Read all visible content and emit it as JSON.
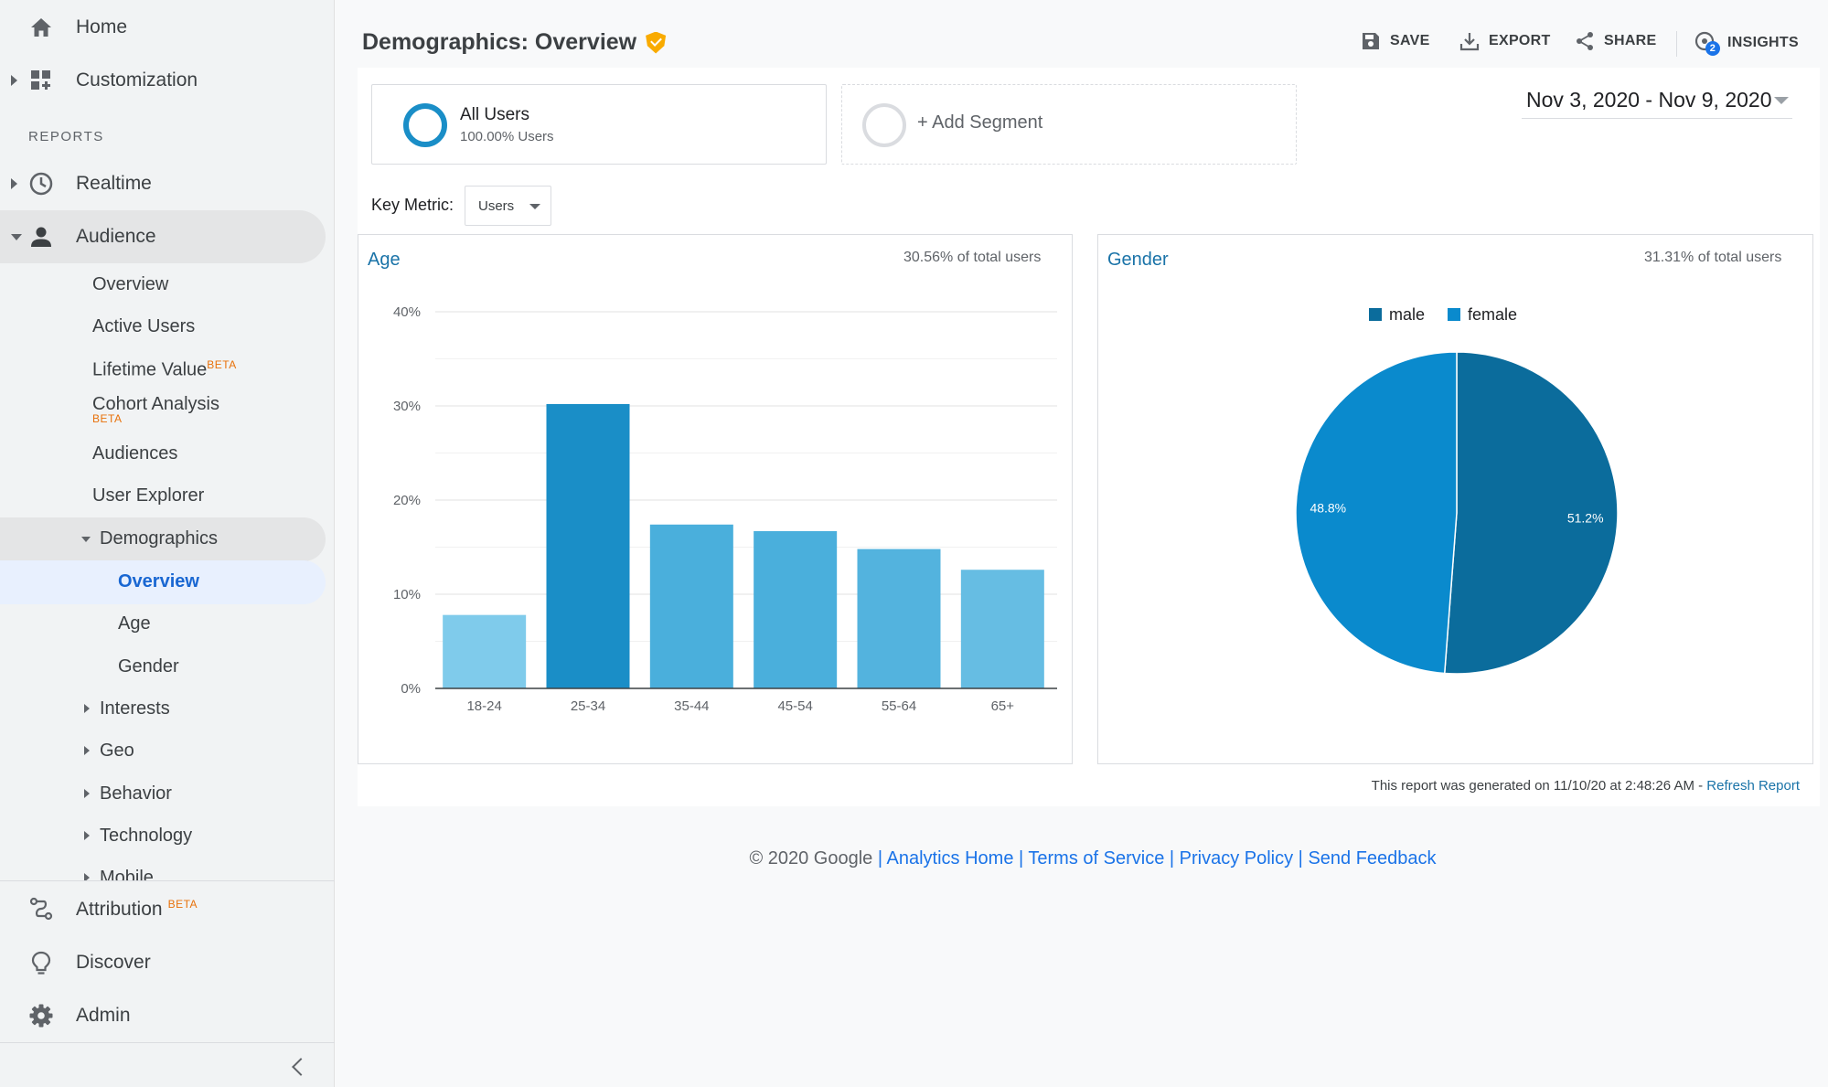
{
  "sidebar": {
    "home": "Home",
    "customization": "Customization",
    "reports_header": "REPORTS",
    "realtime": "Realtime",
    "audience": "Audience",
    "audience_items": {
      "overview": "Overview",
      "active_users": "Active Users",
      "lifetime_value": "Lifetime Value",
      "cohort_analysis": "Cohort Analysis",
      "audiences": "Audiences",
      "user_explorer": "User Explorer",
      "demographics": "Demographics",
      "demo_overview": "Overview",
      "demo_age": "Age",
      "demo_gender": "Gender",
      "interests": "Interests",
      "geo": "Geo",
      "behavior": "Behavior",
      "technology": "Technology",
      "mobile": "Mobile"
    },
    "beta_label": "BETA",
    "attribution": "Attribution",
    "discover": "Discover",
    "admin": "Admin"
  },
  "header": {
    "title": "Demographics: Overview",
    "save": "SAVE",
    "export": "EXPORT",
    "share": "SHARE",
    "insights": "INSIGHTS",
    "insights_badge": "2"
  },
  "segments": {
    "all_users_title": "All Users",
    "all_users_sub": "100.00% Users",
    "add_segment": "+ Add Segment"
  },
  "date_range": "Nov 3, 2020 - Nov 9, 2020",
  "key_metric": {
    "label": "Key Metric:",
    "value": "Users"
  },
  "age_panel": {
    "title": "Age",
    "pct_total": "30.56% of total users"
  },
  "gender_panel": {
    "title": "Gender",
    "pct_total": "31.31% of total users"
  },
  "report_generated": "This report was generated on 11/10/20 at 2:48:26 AM - ",
  "refresh_report": "Refresh Report",
  "footer": {
    "copyright": "© 2020 Google",
    "sep": " | ",
    "analytics_home": "Analytics Home",
    "terms": "Terms of Service",
    "privacy": "Privacy Policy",
    "feedback": "Send Feedback"
  },
  "colors": {
    "accent": "#1a73a8",
    "bar_25_34": "#1a8ec7",
    "pie_male": "#0b6c9c",
    "pie_female": "#0a8acd"
  },
  "chart_data": [
    {
      "type": "bar",
      "title": "Age",
      "categories": [
        "18-24",
        "25-34",
        "35-44",
        "45-54",
        "55-64",
        "65+"
      ],
      "values": [
        7.8,
        30.2,
        17.4,
        16.7,
        14.8,
        12.6
      ],
      "bar_colors": [
        "#7fcbeb",
        "#1a8ec7",
        "#4aafdc",
        "#4aafdc",
        "#53b3de",
        "#66bde3"
      ],
      "ylim": [
        0,
        40
      ],
      "yticks": [
        "0%",
        "10%",
        "20%",
        "30%",
        "40%"
      ],
      "grid": true
    },
    {
      "type": "pie",
      "title": "Gender",
      "labels": [
        "male",
        "female"
      ],
      "values": [
        51.2,
        48.8
      ],
      "value_labels": [
        "51.2%",
        "48.8%"
      ],
      "colors": [
        "#0b6c9c",
        "#0a8acd"
      ],
      "legend": "top"
    }
  ]
}
